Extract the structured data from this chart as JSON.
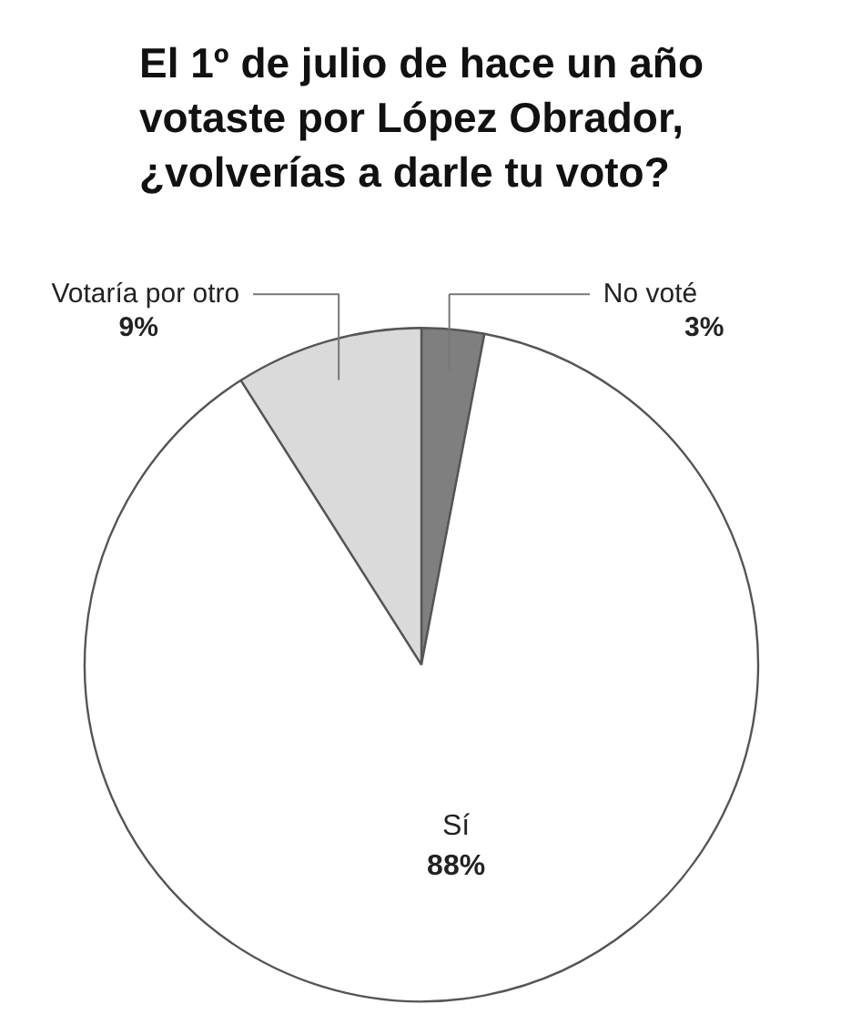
{
  "chart_data": {
    "type": "pie",
    "title": "El 1º de julio de hace un año votaste por López Obrador, ¿volverías a darle tu voto?",
    "categories": [
      "No voté",
      "Sí",
      "Votaría por otro"
    ],
    "values": [
      3,
      88,
      9
    ],
    "value_labels": [
      "3%",
      "88%",
      "9%"
    ],
    "colors": [
      "#7f7f7f",
      "#ffffff",
      "#dadada"
    ]
  }
}
